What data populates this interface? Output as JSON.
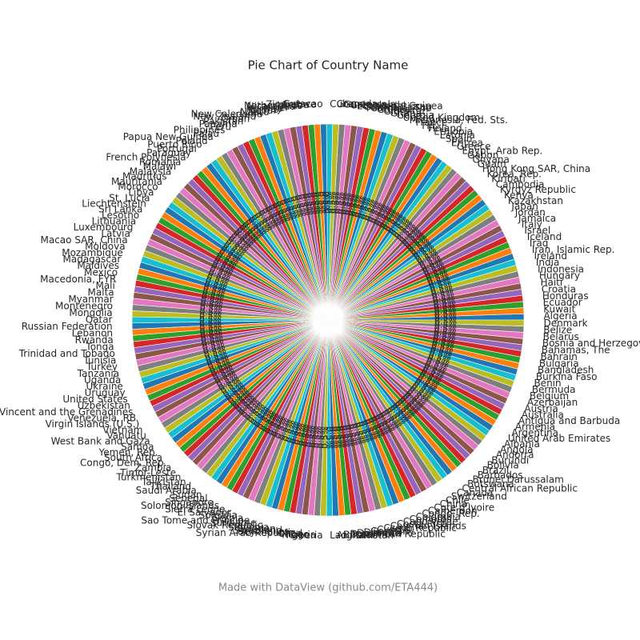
{
  "chart_data": {
    "type": "pie",
    "title": "Pie Chart of Country Name",
    "categories": [
      "Algeria",
      "Kuwait",
      "Ecuador",
      "Honduras",
      "Croatia",
      "Haiti",
      "Hungary",
      "Indonesia",
      "India",
      "Ireland",
      "Iran, Islamic Rep.",
      "Iraq",
      "Iceland",
      "Israel",
      "Italy",
      "Jamaica",
      "Jordan",
      "Japan",
      "Kazakhstan",
      "Kenya",
      "Kyrgyz Republic",
      "Cambodia",
      "Kiribati",
      "Korea, Rep.",
      "Hong Kong SAR, China",
      "Guam",
      "Guyana",
      "Gabon",
      "Egypt, Arab Rep.",
      "Greece",
      "Eritrea",
      "Spain",
      "Estonia",
      "Ethiopia",
      "Finland",
      "Fiji",
      "France",
      "Micronesia, Fed. Sts.",
      "United Kingdom",
      "Georgia",
      "Ghana",
      "Gibraltar",
      "Guinea",
      "Gambia, The",
      "Guinea-Bissau",
      "Equatorial Guinea",
      "Greenland",
      "Guatemala",
      "Grenada",
      "Cuba",
      "Curacao",
      "Zimbabwe",
      "Aruba",
      "Netherlands",
      "Nicaragua",
      "Niger",
      "Norway",
      "Nepal",
      "Nauru",
      "New Caledonia",
      "New Zealand",
      "Oman",
      "Pakistan",
      "Panama",
      "Peru",
      "Philippines",
      "Palau",
      "Papua New Guinea",
      "Poland",
      "Puerto Rico",
      "Portugal",
      "Paraguay",
      "French Polynesia",
      "Romania",
      "Malawi",
      "Malaysia",
      "Mauritius",
      "Mauritania",
      "Morocco",
      "Libya",
      "St. Lucia",
      "Liechtenstein",
      "Sri Lanka",
      "Lesotho",
      "Lithuania",
      "Luxembourg",
      "Latvia",
      "Macao SAR, China",
      "Moldova",
      "Mozambique",
      "Madagascar",
      "Maldives",
      "Mexico",
      "Macedonia, FYR",
      "Mali",
      "Malta",
      "Myanmar",
      "Montenegro",
      "Mongolia",
      "Qatar",
      "Russian Federation",
      "Lebanon",
      "Rwanda",
      "Tonga",
      "Trinidad and Tobago",
      "Tunisia",
      "Turkey",
      "Tanzania",
      "Uganda",
      "Ukraine",
      "Uruguay",
      "United States",
      "Uzbekistan",
      "St. Vincent and the Grenadines",
      "Venezuela, RB",
      "Virgin Islands (U.S.)",
      "Vietnam",
      "Vanuatu",
      "West Bank and Gaza",
      "Samoa",
      "Yemen, Rep.",
      "South Africa",
      "Congo, Dem. Rep.",
      "Zambia",
      "Timor-Leste",
      "Turkmenistan",
      "Tajikistan",
      "Thailand",
      "Saudi Arabia",
      "Sudan",
      "Senegal",
      "Singapore",
      "Solomon Islands",
      "Sierra Leone",
      "El Salvador",
      "Somalia",
      "Serbia",
      "Sao Tome and Principe",
      "Suriname",
      "Slovak Republic",
      "Slovenia",
      "Sweden",
      "Swaziland",
      "Seychelles",
      "Syrian Arab Republic",
      "Chad",
      "Togo",
      "Nigeria",
      "Liberia",
      "Lao PDR",
      "Afghanistan",
      "Bhutan",
      "Dominican Republic",
      "Dominica",
      "Djibouti",
      "Germany",
      "Cyprus",
      "Czech Republic",
      "Cayman Islands",
      "Costa Rica",
      "Cabo Verde",
      "Comoros",
      "Colombia",
      "Congo, Rep.",
      "Cameroon",
      "Cote d'Ivoire",
      "China",
      "Chile",
      "Switzerland",
      "Canada",
      "Central African Republic",
      "Botswana",
      "Brunei Darussalam",
      "Barbados",
      "Brazil",
      "Bolivia",
      "Burundi",
      "Andorra",
      "Angola",
      "Albania",
      "United Arab Emirates",
      "Argentina",
      "Armenia",
      "Antigua and Barbuda",
      "Australia",
      "Austria",
      "Azerbaijan",
      "Belgium",
      "Bermuda",
      "Benin",
      "Burkina Faso",
      "Bangladesh",
      "Bulgaria",
      "Bahrain",
      "Bahamas, The",
      "Bosnia and Herzegovina",
      "Belarus",
      "Belize",
      "Denmark"
    ],
    "values": [
      0.5,
      0.5,
      0.5,
      0.5,
      0.5,
      0.5,
      0.5,
      0.5,
      0.5,
      0.5,
      0.5,
      0.5,
      0.5,
      0.5,
      0.5,
      0.5,
      0.5,
      0.5,
      0.5,
      0.5,
      0.5,
      0.5,
      0.5,
      0.5,
      0.5,
      0.5,
      0.5,
      0.5,
      0.5,
      0.5,
      0.5,
      0.5,
      0.5,
      0.5,
      0.5,
      0.5,
      0.5,
      0.5,
      0.5,
      0.5,
      0.5,
      0.5,
      0.5,
      0.5,
      0.5,
      0.5,
      0.5,
      0.5,
      0.5,
      0.5,
      0.5,
      0.5,
      0.5,
      0.5,
      0.5,
      0.5,
      0.5,
      0.5,
      0.5,
      0.5,
      0.5,
      0.5,
      0.5,
      0.5,
      0.5,
      0.5,
      0.5,
      0.5,
      0.5,
      0.5,
      0.5,
      0.5,
      0.5,
      0.5,
      0.5,
      0.5,
      0.5,
      0.5,
      0.5,
      0.5,
      0.5,
      0.5,
      0.5,
      0.5,
      0.5,
      0.5,
      0.5,
      0.5,
      0.5,
      0.5,
      0.5,
      0.5,
      0.5,
      0.5,
      0.5,
      0.5,
      0.5,
      0.5,
      0.5,
      0.5,
      0.5,
      0.5,
      0.5,
      0.5,
      0.5,
      0.5,
      0.5,
      0.5,
      0.5,
      0.5,
      0.5,
      0.5,
      0.5,
      0.5,
      0.5,
      0.5,
      0.5,
      0.5,
      0.5,
      0.5,
      0.5,
      0.5,
      0.5,
      0.5,
      0.5,
      0.5,
      0.5,
      0.5,
      0.5,
      0.5,
      0.5,
      0.5,
      0.5,
      0.5,
      0.5,
      0.5,
      0.5,
      0.5,
      0.5,
      0.5,
      0.5,
      0.5,
      0.5,
      0.5,
      0.5,
      0.5,
      0.5,
      0.5,
      0.5,
      0.5,
      0.5,
      0.5,
      0.5,
      0.5,
      0.5,
      0.5,
      0.5,
      0.5,
      0.5,
      0.5,
      0.5,
      0.5,
      0.5,
      0.5,
      0.5,
      0.5,
      0.5,
      0.5,
      0.5,
      0.5,
      0.5,
      0.5,
      0.5,
      0.5,
      0.5,
      0.5,
      0.5,
      0.5,
      0.5,
      0.5,
      0.5,
      0.5,
      0.5,
      0.5,
      0.5,
      0.5,
      0.5,
      0.5,
      0.5,
      0.5,
      0.5,
      0.5,
      0.5,
      0.5,
      0.5,
      0.5,
      0.5,
      0.5,
      0.5
    ],
    "value_labels": [
      "0.5%",
      "0.5%",
      "0.5%",
      "0.5%",
      "0.5%",
      "0.5%",
      "0.5%",
      "0.5%",
      "0.5%",
      "0.5%",
      "0.5%",
      "0.5%",
      "0.5%",
      "0.5%",
      "0.5%",
      "0.5%",
      "0.5%",
      "0.5%",
      "0.5%",
      "0.5%",
      "0.5%",
      "0.5%",
      "0.5%",
      "0.5%",
      "0.5%",
      "0.5%",
      "0.5%",
      "0.5%",
      "0.5%",
      "0.5%",
      "0.5%",
      "0.5%",
      "0.5%",
      "0.5%",
      "0.5%",
      "0.5%",
      "0.5%",
      "0.5%",
      "0.5%",
      "0.5%",
      "0.5%",
      "0.5%",
      "0.5%",
      "0.5%",
      "0.5%",
      "0.5%",
      "0.5%",
      "0.5%",
      "0.5%",
      "0.5%",
      "0.5%",
      "0.5%",
      "0.5%",
      "0.5%",
      "0.5%",
      "0.5%",
      "0.5%",
      "0.5%",
      "0.5%",
      "0.5%",
      "0.5%",
      "0.5%",
      "0.5%",
      "0.5%",
      "0.5%",
      "0.5%",
      "0.5%",
      "0.5%",
      "0.5%",
      "0.5%",
      "0.5%",
      "0.5%",
      "0.5%",
      "0.5%",
      "0.5%",
      "0.5%",
      "0.5%",
      "0.5%",
      "0.5%",
      "0.5%",
      "0.5%",
      "0.5%",
      "0.5%",
      "0.5%",
      "0.5%",
      "0.5%",
      "0.5%",
      "0.5%",
      "0.5%",
      "0.5%",
      "0.5%",
      "0.5%",
      "0.5%",
      "0.5%",
      "0.5%",
      "0.5%",
      "0.5%",
      "0.5%",
      "0.5%",
      "0.5%",
      "0.5%",
      "0.5%",
      "0.5%",
      "0.5%",
      "0.5%",
      "0.5%",
      "0.5%",
      "0.5%",
      "0.5%",
      "0.5%",
      "0.5%",
      "0.5%",
      "0.5%",
      "0.5%",
      "0.5%",
      "0.5%",
      "0.5%",
      "0.5%",
      "0.5%",
      "0.5%",
      "0.5%",
      "0.5%",
      "0.5%",
      "0.5%",
      "0.5%",
      "0.5%",
      "0.5%",
      "0.5%",
      "0.5%",
      "0.5%",
      "0.5%",
      "0.5%",
      "0.5%",
      "0.5%",
      "0.5%",
      "0.5%",
      "0.5%",
      "0.5%",
      "0.5%",
      "0.5%",
      "0.5%",
      "0.5%",
      "0.5%",
      "0.5%",
      "0.5%",
      "0.5%",
      "0.5%",
      "0.5%",
      "0.5%",
      "0.5%",
      "0.5%",
      "0.5%",
      "0.5%",
      "0.5%",
      "0.5%",
      "0.5%",
      "0.5%",
      "0.5%",
      "0.5%",
      "0.5%",
      "0.5%",
      "0.5%",
      "0.5%",
      "0.5%",
      "0.5%",
      "0.5%",
      "0.5%",
      "0.5%",
      "0.5%",
      "0.5%",
      "0.5%",
      "0.5%",
      "0.5%",
      "0.5%",
      "0.5%",
      "0.5%",
      "0.5%",
      "0.5%",
      "0.5%",
      "0.5%",
      "0.5%",
      "0.5%",
      "0.5%",
      "0.5%",
      "0.5%",
      "0.5%",
      "0.5%",
      "0.5%",
      "0.5%",
      "0.5%",
      "0.5%",
      "0.5%",
      "0.5%",
      "0.5%",
      "0.5%",
      "0.5%",
      "0.5%",
      "0.5%",
      "0.5%"
    ],
    "colors": [
      "#1f77b4",
      "#ff7f0e",
      "#2ca02c",
      "#d62728",
      "#9467bd",
      "#8c564b",
      "#e377c2",
      "#7f7f7f",
      "#bcbd22",
      "#17becf"
    ]
  },
  "footer": "Made with DataView (github.com/ETA444)"
}
